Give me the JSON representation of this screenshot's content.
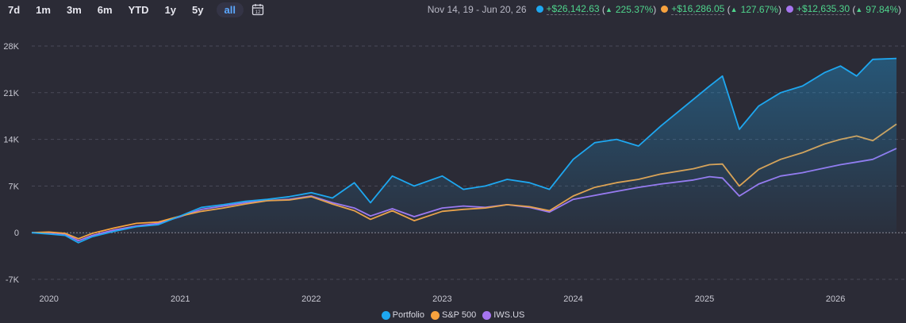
{
  "toolbar": {
    "ranges": [
      "7d",
      "1m",
      "3m",
      "6m",
      "YTD",
      "1y",
      "5y",
      "all"
    ],
    "active": "all",
    "calendar_icon": "calendar-icon"
  },
  "summary": {
    "date_range": "Nov 14, 19 - Jun 20, 26",
    "items": [
      {
        "name": "Portfolio",
        "color": "#1ea7f0",
        "amount": "+$26,142.63",
        "pct": "225.37%"
      },
      {
        "name": "S&P 500",
        "color": "#f7a23e",
        "amount": "+$16,286.05",
        "pct": "127.67%"
      },
      {
        "name": "IWS.US",
        "color": "#a675f0",
        "amount": "+$12,635.30",
        "pct": "97.84%"
      }
    ],
    "up_icon": "triangle-up-icon"
  },
  "chart_data": {
    "type": "line",
    "title": "",
    "xlabel": "",
    "ylabel": "",
    "x_ticks": [
      "2020",
      "2021",
      "2022",
      "2023",
      "2024",
      "2025",
      "2026"
    ],
    "y_ticks": [
      "28K",
      "21K",
      "14K",
      "7K",
      "0",
      "-7K"
    ],
    "ylim": [
      -7000,
      28000
    ],
    "grid": "horizontal dashed",
    "legend": "bottom-center",
    "x": [
      "2019-11-14",
      "2020-01-01",
      "2020-02-15",
      "2020-03-23",
      "2020-05-01",
      "2020-07-01",
      "2020-09-01",
      "2020-11-01",
      "2021-01-01",
      "2021-03-01",
      "2021-05-01",
      "2021-07-01",
      "2021-09-01",
      "2021-11-01",
      "2022-01-01",
      "2022-03-01",
      "2022-05-01",
      "2022-06-15",
      "2022-08-15",
      "2022-10-15",
      "2023-01-01",
      "2023-03-01",
      "2023-05-01",
      "2023-07-01",
      "2023-09-01",
      "2023-10-27",
      "2024-01-01",
      "2024-03-01",
      "2024-05-01",
      "2024-07-01",
      "2024-09-01",
      "2024-12-01",
      "2025-01-15",
      "2025-02-20",
      "2025-04-08",
      "2025-06-01",
      "2025-08-01",
      "2025-10-01",
      "2025-12-01",
      "2026-01-15",
      "2026-03-01",
      "2026-04-15",
      "2026-06-20"
    ],
    "series": [
      {
        "name": "Portfolio",
        "color": "#1ea7f0",
        "fill": true,
        "values": [
          0,
          -200,
          -400,
          -1500,
          -600,
          200,
          900,
          1200,
          2500,
          3800,
          4200,
          4700,
          5000,
          5400,
          6000,
          5200,
          7500,
          4500,
          8500,
          7000,
          8500,
          6500,
          7000,
          8000,
          7500,
          6500,
          11000,
          13500,
          14000,
          13000,
          16000,
          20000,
          22000,
          23500,
          15500,
          19000,
          21000,
          22000,
          24000,
          25000,
          23500,
          26000,
          26143
        ]
      },
      {
        "name": "S&P 500",
        "color": "#f7a23e",
        "values": [
          0,
          100,
          -100,
          -900,
          -100,
          700,
          1400,
          1600,
          2500,
          3200,
          3700,
          4300,
          4800,
          4900,
          5400,
          4300,
          3300,
          2000,
          3300,
          1800,
          3200,
          3500,
          3700,
          4200,
          3900,
          3300,
          5500,
          6800,
          7500,
          8000,
          8800,
          9600,
          10200,
          10300,
          7000,
          9500,
          11000,
          12000,
          13300,
          14000,
          14500,
          13800,
          16286
        ]
      },
      {
        "name": "IWS.US",
        "color": "#a675f0",
        "values": [
          0,
          0,
          -200,
          -1200,
          -400,
          400,
          1000,
          1400,
          2400,
          3500,
          4000,
          4500,
          4800,
          5000,
          5500,
          4500,
          3700,
          2500,
          3600,
          2400,
          3700,
          4000,
          3800,
          4200,
          3800,
          3100,
          5000,
          5600,
          6200,
          6800,
          7300,
          7900,
          8400,
          8200,
          5500,
          7300,
          8500,
          9000,
          9700,
          10200,
          10600,
          11000,
          12635
        ]
      }
    ]
  },
  "legend": [
    {
      "name": "Portfolio",
      "color": "#1ea7f0"
    },
    {
      "name": "S&P 500",
      "color": "#f7a23e"
    },
    {
      "name": "IWS.US",
      "color": "#a675f0"
    }
  ]
}
